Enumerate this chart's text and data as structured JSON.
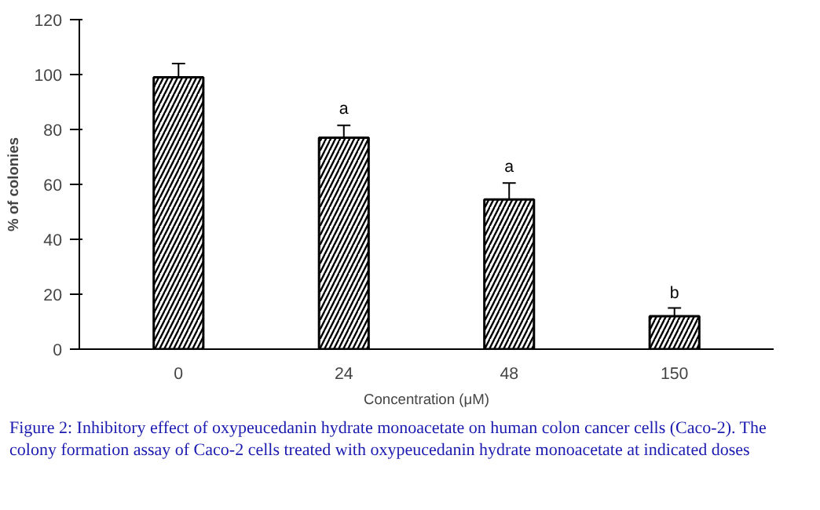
{
  "chart_data": {
    "type": "bar",
    "xlabel": "Concentration (μM)",
    "ylabel": "% of colonies",
    "categories": [
      "0",
      "24",
      "48",
      "150"
    ],
    "values": [
      99,
      77,
      54.5,
      12
    ],
    "errors": [
      5,
      4.5,
      6,
      3
    ],
    "color": "#ffffff",
    "ylim": [
      0,
      120
    ],
    "yticks": [
      0,
      20,
      40,
      60,
      80,
      100,
      120
    ],
    "grid": false,
    "annotations": [
      {
        "text": "a",
        "x": "24",
        "y": 84
      },
      {
        "text": "a",
        "x": "48",
        "y": 63
      },
      {
        "text": "b",
        "x": "150",
        "y": 17
      },
      "Figure 2: Inhibitory effect of oxypeucedanin hydrate monoacetate on human colon cancer cells (Caco-2). The colony formation assay of Caco-2 cells treated with oxypeucedanin hydrate monoacetate at indicated doses"
    ]
  }
}
